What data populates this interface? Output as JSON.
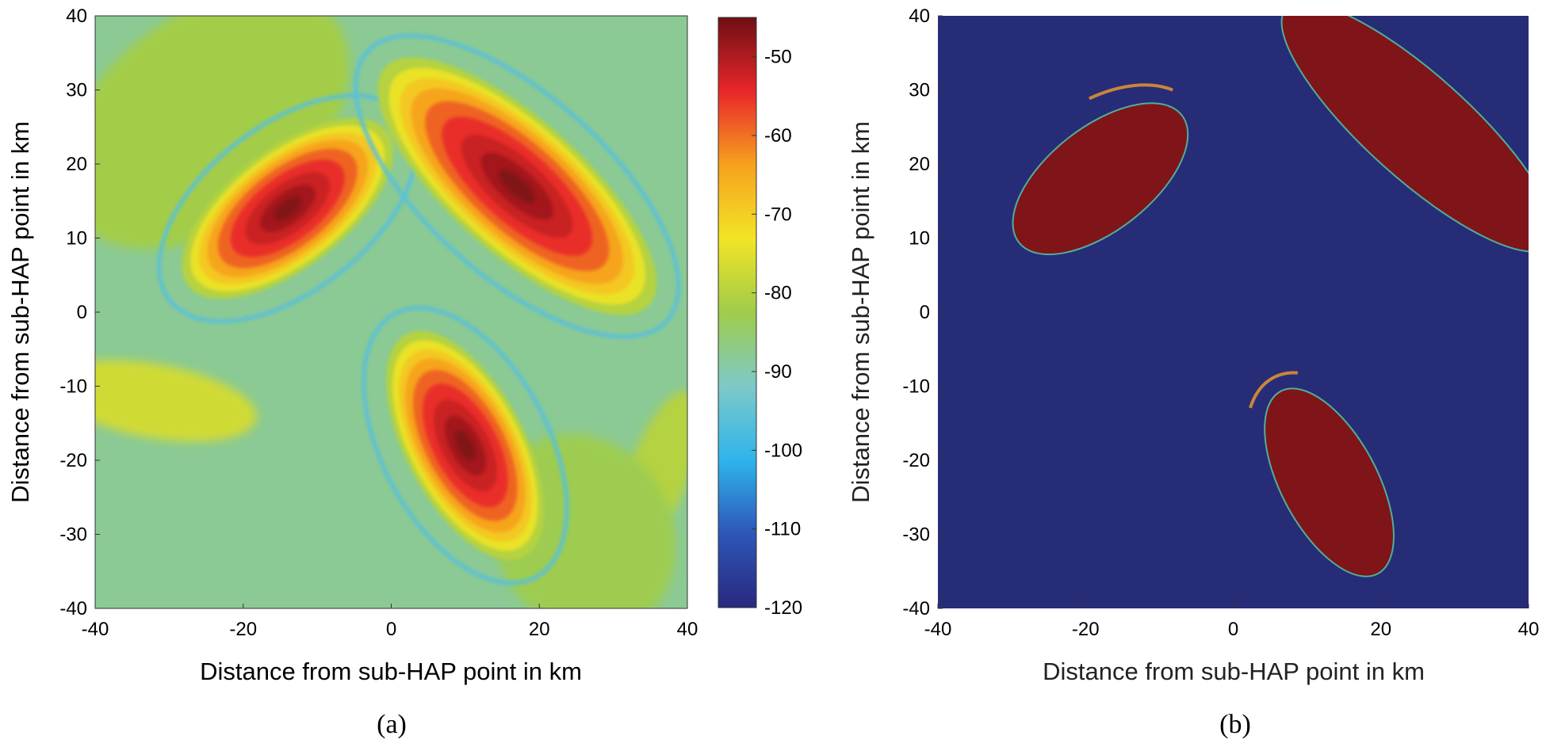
{
  "chart_data": [
    {
      "panel": "a",
      "type": "heatmap",
      "caption": "(a)",
      "xlabel": "Distance from sub-HAP point in km",
      "ylabel": "Distance from sub-HAP point in km",
      "xlim": [
        -40,
        40
      ],
      "ylim": [
        -40,
        40
      ],
      "xticks": [
        "-40",
        "-20",
        "0",
        "20",
        "40"
      ],
      "yticks": [
        "40",
        "30",
        "20",
        "10",
        "0",
        "-10",
        "-20",
        "-30",
        "-40"
      ],
      "colorbar": {
        "range": [
          -120,
          -45
        ],
        "ticks": [
          "-50",
          "-60",
          "-70",
          "-80",
          "-90",
          "-100",
          "-110",
          "-120"
        ],
        "colors": [
          "#29297f",
          "#2d56b8",
          "#2fb4ec",
          "#7dc9c8",
          "#9fcc4a",
          "#f2e425",
          "#f6a21e",
          "#e8262a",
          "#6e0f14"
        ]
      },
      "beams": [
        {
          "name": "upper-left beam",
          "center": [
            -14,
            14
          ],
          "peak": -46,
          "axis_angle_deg": 38,
          "major_half_km": 17,
          "minor_half_km": 8
        },
        {
          "name": "upper-right beam",
          "center": [
            17,
            17
          ],
          "peak": -46,
          "axis_angle_deg": -42,
          "major_half_km": 24,
          "minor_half_km": 9
        },
        {
          "name": "lower beam",
          "center": [
            10,
            -18
          ],
          "peak": -46,
          "axis_angle_deg": -62,
          "major_half_km": 17,
          "minor_half_km": 8
        }
      ],
      "background_level": -88
    },
    {
      "panel": "b",
      "type": "heatmap",
      "caption": "(b)",
      "xlabel": "Distance from sub-HAP point in km",
      "ylabel": "Distance from sub-HAP point in km",
      "xlim": [
        -40,
        40
      ],
      "ylim": [
        -40,
        40
      ],
      "xticks": [
        "-40",
        "-20",
        "0",
        "20",
        "40"
      ],
      "yticks": [
        "40",
        "30",
        "20",
        "10",
        "0",
        "-10",
        "-20",
        "-30",
        "-40"
      ],
      "colors": {
        "background": "#272c77",
        "region": "#7f1518",
        "edge": "#4fae9a"
      },
      "regions": [
        {
          "name": "upper-left coverage",
          "center": [
            -18,
            18
          ],
          "axis_angle_deg": 38,
          "major_half_km": 14,
          "minor_half_km": 7
        },
        {
          "name": "upper-right coverage",
          "center": [
            25,
            25
          ],
          "axis_angle_deg": -42,
          "major_half_km": 24,
          "minor_half_km": 7
        },
        {
          "name": "lower coverage",
          "center": [
            13,
            -23
          ],
          "axis_angle_deg": -62,
          "major_half_km": 14,
          "minor_half_km": 6.5
        }
      ]
    }
  ]
}
